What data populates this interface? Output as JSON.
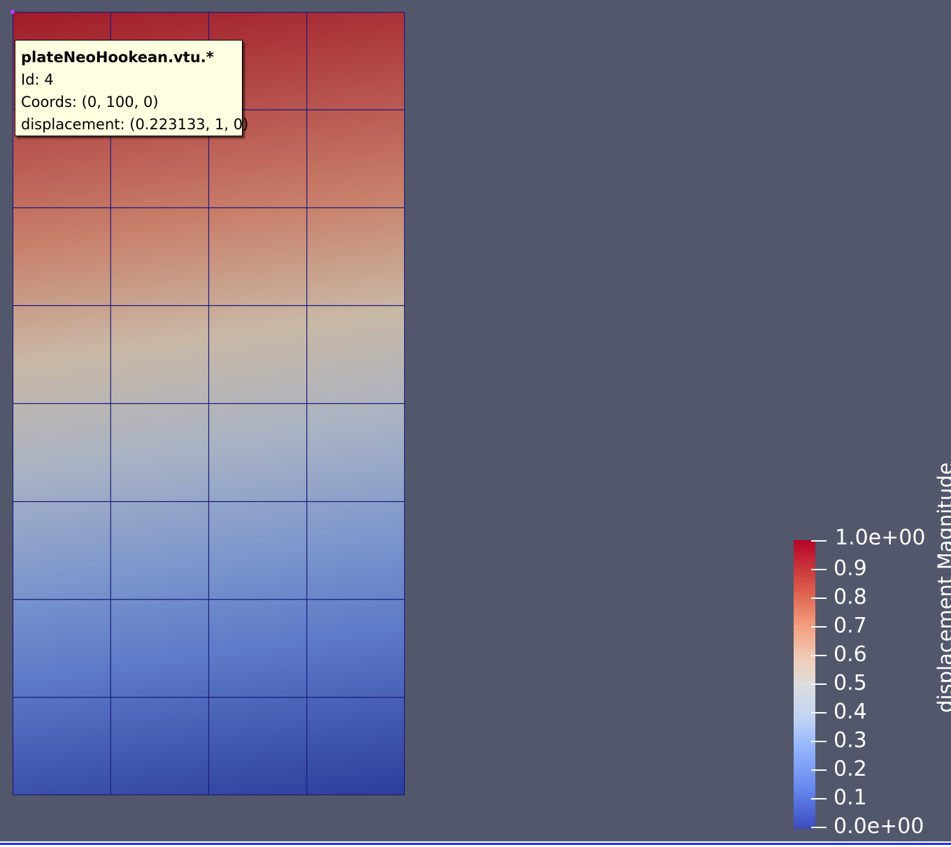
{
  "tooltip": {
    "title": "plateNeoHookean.vtu.*",
    "id_line": "Id: 4",
    "coords_line": "Coords: (0, 100, 0)",
    "displacement_line": "displacement: (0.223133, 1, 0)"
  },
  "legend": {
    "title": "displacement Magnitude",
    "max_label": "1.0e+00",
    "min_label": "0.0e+00",
    "tick_labels": [
      "0.9",
      "0.8",
      "0.7",
      "0.6",
      "0.5",
      "0.4",
      "0.3",
      "0.2",
      "0.1"
    ],
    "colors": {
      "high": "#b40426",
      "mid": "#dddddd",
      "low": "#3b4cc0"
    }
  },
  "viewport": {
    "background_color": "#52576c",
    "mesh_line_color": "#1a1a7a",
    "mesh_columns": 4,
    "mesh_rows": 8
  }
}
